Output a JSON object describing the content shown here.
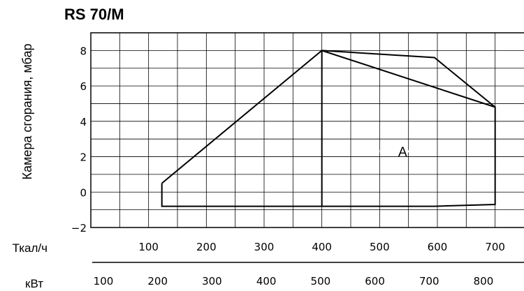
{
  "chart_data": {
    "type": "line",
    "title": "RS 70/M",
    "ylabel": "Камера сгорания, мбар",
    "xlabel_primary": "Ткал/ч",
    "xlabel_secondary": "кВт",
    "ylim": [
      -2,
      9
    ],
    "xlim": [
      0,
      750
    ],
    "grid": true,
    "yticks": [
      -2,
      0,
      2,
      4,
      6,
      8
    ],
    "xticks_primary": [
      100,
      200,
      300,
      400,
      500,
      600,
      700
    ],
    "xticks_secondary": [
      100,
      200,
      300,
      400,
      500,
      600,
      700,
      800
    ],
    "series": [
      {
        "x": [
          123,
          123,
          400,
          595,
          700,
          700,
          400,
          123
        ],
        "y": [
          0.5,
          -0.8,
          -0.8,
          -0.8,
          -0.7,
          4.8,
          8.0,
          0.5
        ]
      },
      {
        "x": [
          400,
          400,
          595,
          700
        ],
        "y": [
          -0.8,
          8.0,
          7.6,
          4.8
        ]
      }
    ],
    "annotations": [
      {
        "text": "A",
        "x": 540,
        "y": 2.3
      }
    ]
  }
}
